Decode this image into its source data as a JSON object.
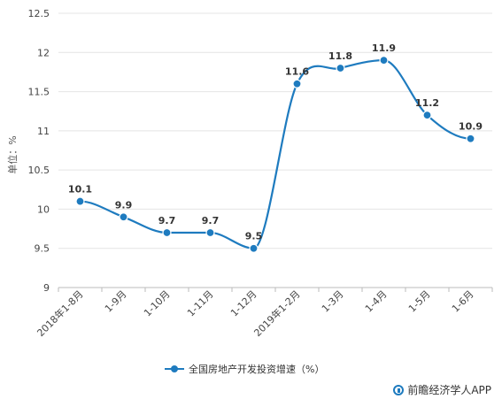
{
  "chart_data": {
    "type": "line",
    "ylabel": "单位：%",
    "ylim": [
      9,
      12.5
    ],
    "yticks": [
      9,
      9.5,
      10,
      10.5,
      11,
      11.5,
      12,
      12.5
    ],
    "categories": [
      "2018年1-8月",
      "1-9月",
      "1-10月",
      "1-11月",
      "1-12月",
      "2019年1-2月",
      "1-3月",
      "1-4月",
      "1-5月",
      "1-6月"
    ],
    "series": [
      {
        "name": "全国房地产开发投资增速（%）",
        "values": [
          10.1,
          9.9,
          9.7,
          9.7,
          9.5,
          11.6,
          11.8,
          11.9,
          11.2,
          10.9
        ],
        "color": "#1e7bbf"
      }
    ],
    "grid": true,
    "legend": "bottom",
    "smooth": true
  },
  "brand": {
    "text": "前瞻经济学人APP",
    "icon": "qianzhan-logo-icon"
  }
}
